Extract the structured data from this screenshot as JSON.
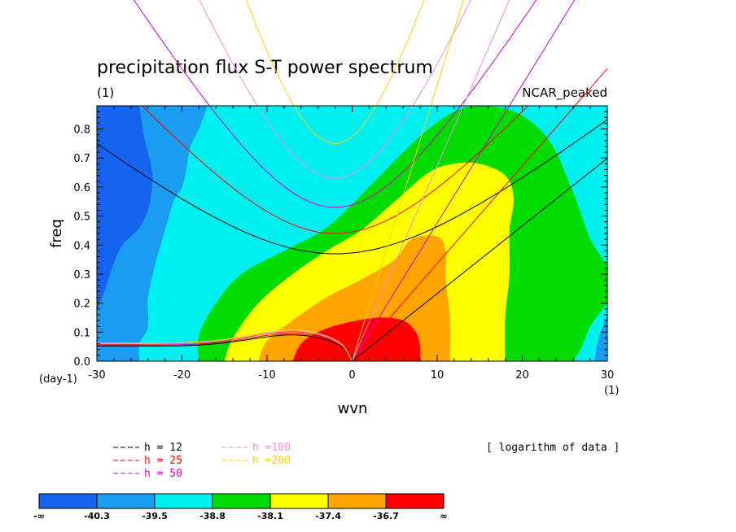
{
  "chart_data": {
    "type": "contour",
    "title": "precipitation flux S-T power spectrum",
    "subtitle_left": "(1)",
    "subtitle_right": "NCAR_peaked",
    "xlabel": "wvn",
    "ylabel": "freq",
    "x_unit": "(1)",
    "y_unit": "(day-1)",
    "xlim": [
      -30,
      30
    ],
    "ylim": [
      0,
      0.88
    ],
    "x_ticks": [
      -30,
      -20,
      -10,
      0,
      10,
      20,
      30
    ],
    "x_tick_labels": [
      "-30",
      "-20",
      "-10",
      "0",
      "10",
      "20",
      "30"
    ],
    "y_ticks": [
      0,
      0.1,
      0.2,
      0.3,
      0.4,
      0.5,
      0.6,
      0.7,
      0.8
    ],
    "y_tick_labels": [
      "0.0",
      "0.1",
      "0.2",
      "0.3",
      "0.4",
      "0.5",
      "0.6",
      "0.7",
      "0.8"
    ],
    "data_note": "[ logarithm of data ]",
    "contour_levels": [
      "-∞",
      "-40.3",
      "-39.5",
      "-38.8",
      "-38.1",
      "-37.4",
      "-36.7",
      "∞"
    ],
    "level_colors": [
      "#1464f0",
      "#1a9cf0",
      "#00f0f0",
      "#00dc00",
      "#ffff00",
      "#ffa500",
      "#ff0000"
    ],
    "region_boundaries": [
      {
        "level": "-40.3",
        "points": [
          [
            -30,
            0.17
          ],
          [
            -29,
            0.25
          ],
          [
            -28,
            0.34
          ],
          [
            -27,
            0.4
          ],
          [
            -26,
            0.43
          ],
          [
            -25,
            0.46
          ],
          [
            -24,
            0.52
          ],
          [
            -23.5,
            0.6
          ],
          [
            -23.5,
            0.65
          ],
          [
            -24,
            0.72
          ],
          [
            -24.5,
            0.78
          ],
          [
            -25,
            0.88
          ]
        ]
      },
      {
        "level": "-39.5",
        "points": [
          [
            -25,
            0
          ],
          [
            -25,
            0.06
          ],
          [
            -24,
            0.12
          ],
          [
            -24,
            0.22
          ],
          [
            -23,
            0.35
          ],
          [
            -22,
            0.45
          ],
          [
            -21,
            0.55
          ],
          [
            -20,
            0.6
          ],
          [
            -19.5,
            0.66
          ],
          [
            -19,
            0.74
          ],
          [
            -18,
            0.8
          ],
          [
            -17,
            0.88
          ]
        ]
      },
      {
        "level": "-38.8",
        "points": [
          [
            -18,
            0
          ],
          [
            -18,
            0.09
          ],
          [
            -16,
            0.2
          ],
          [
            -13,
            0.3
          ],
          [
            -8,
            0.38
          ],
          [
            -3,
            0.46
          ],
          [
            2,
            0.6
          ],
          [
            6,
            0.72
          ],
          [
            9,
            0.8
          ],
          [
            12,
            0.86
          ],
          [
            15,
            0.88
          ],
          [
            19,
            0.86
          ],
          [
            22,
            0.8
          ],
          [
            24,
            0.72
          ],
          [
            25,
            0.65
          ],
          [
            26,
            0.58
          ],
          [
            27,
            0.5
          ],
          [
            28,
            0.42
          ],
          [
            30,
            0.33
          ]
        ]
      },
      {
        "level": "-38.8b",
        "points": [
          [
            26,
            0
          ],
          [
            27,
            0.05
          ],
          [
            28,
            0.12
          ],
          [
            30,
            0.2
          ]
        ]
      },
      {
        "level": "-38.1",
        "points": [
          [
            -15,
            0
          ],
          [
            -14,
            0.08
          ],
          [
            -11,
            0.2
          ],
          [
            -7,
            0.3
          ],
          [
            -3,
            0.38
          ],
          [
            1,
            0.45
          ],
          [
            5,
            0.55
          ],
          [
            9,
            0.65
          ],
          [
            12,
            0.68
          ],
          [
            15,
            0.68
          ],
          [
            18,
            0.64
          ],
          [
            19,
            0.56
          ],
          [
            18.5,
            0.45
          ],
          [
            18.5,
            0.3
          ],
          [
            18,
            0.15
          ],
          [
            18,
            0
          ]
        ]
      },
      {
        "level": "-37.4",
        "points": [
          [
            -11,
            0
          ],
          [
            -10,
            0.07
          ],
          [
            -7,
            0.14
          ],
          [
            -3,
            0.22
          ],
          [
            1,
            0.28
          ],
          [
            5,
            0.35
          ],
          [
            7,
            0.42
          ],
          [
            10,
            0.43
          ],
          [
            11,
            0.38
          ],
          [
            11,
            0.28
          ],
          [
            11.5,
            0.15
          ],
          [
            11.5,
            0
          ]
        ]
      },
      {
        "level": "-36.7",
        "points": [
          [
            -7,
            0
          ],
          [
            -6,
            0.06
          ],
          [
            -4,
            0.1
          ],
          [
            -1,
            0.13
          ],
          [
            3,
            0.15
          ],
          [
            6,
            0.14
          ],
          [
            7.5,
            0.1
          ],
          [
            8,
            0.05
          ],
          [
            8,
            0
          ]
        ]
      }
    ],
    "dispersion_curves": [
      {
        "name": "h = 12",
        "color": "#000000"
      },
      {
        "name": "h = 25",
        "color": "#ff0000"
      },
      {
        "name": "h = 50",
        "color": "#d400d4"
      },
      {
        "name": "h =100",
        "color": "#e890e0"
      },
      {
        "name": "h =200",
        "color": "#ffd000"
      }
    ],
    "dispersion_params": {
      "equivalent_depths_m": [
        12,
        25,
        50,
        100,
        200
      ],
      "ig_minimum_freq": [
        0.37,
        0.44,
        0.53,
        0.63,
        0.75
      ],
      "kelvin_slope": [
        0.0233,
        0.0336,
        0.0476,
        0.0673,
        0.0951
      ],
      "er_asymptote": [
        0.055,
        0.058,
        0.062,
        0.063,
        0.065
      ]
    }
  }
}
